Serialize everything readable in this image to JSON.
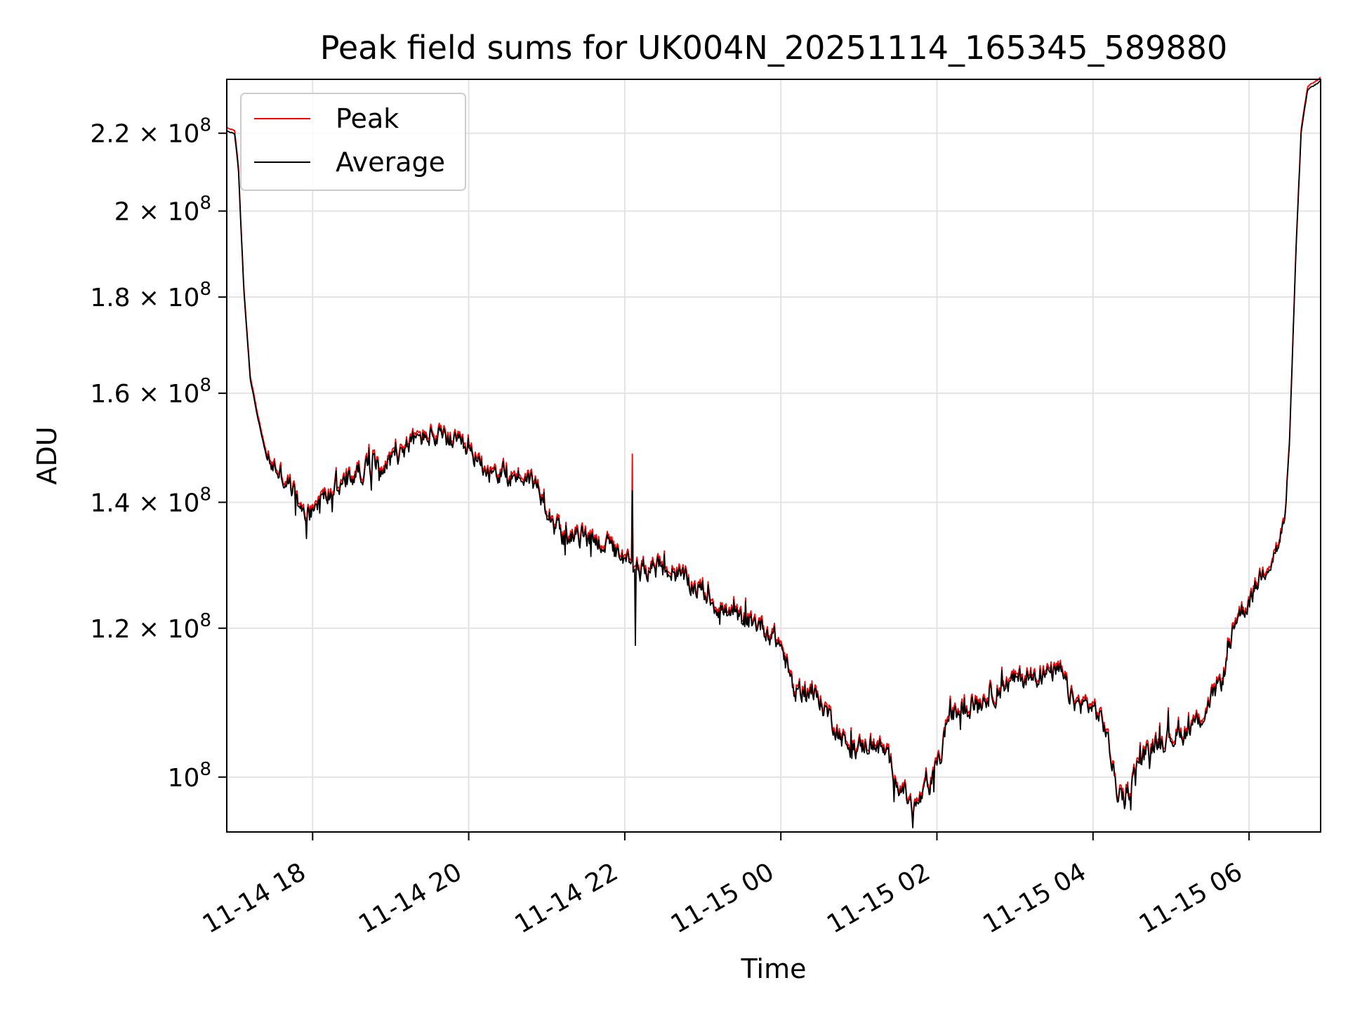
{
  "chart_data": {
    "type": "line",
    "title": "Peak field sums for UK004N_20251114_165345_589880",
    "xlabel": "Time",
    "ylabel": "ADU",
    "y_scale": "log",
    "grid": true,
    "legend_position": "top-left",
    "xlim": [
      "2025-11-14 16:54",
      "2025-11-15 06:55"
    ],
    "ylim": [
      93500000,
      235000000
    ],
    "x_ticks": [
      {
        "t": "2025-11-14 18:00",
        "label": "11-14 18"
      },
      {
        "t": "2025-11-14 20:00",
        "label": "11-14 20"
      },
      {
        "t": "2025-11-14 22:00",
        "label": "11-14 22"
      },
      {
        "t": "2025-11-15 00:00",
        "label": "11-15 00"
      },
      {
        "t": "2025-11-15 02:00",
        "label": "11-15 02"
      },
      {
        "t": "2025-11-15 04:00",
        "label": "11-15 04"
      },
      {
        "t": "2025-11-15 06:00",
        "label": "11-15 06"
      }
    ],
    "y_ticks": [
      {
        "v": 100000000,
        "mant": "",
        "exp": "8"
      },
      {
        "v": 120000000,
        "mant": "1.2",
        "exp": "8"
      },
      {
        "v": 140000000,
        "mant": "1.4",
        "exp": "8"
      },
      {
        "v": 160000000,
        "mant": "1.6",
        "exp": "8"
      },
      {
        "v": 180000000,
        "mant": "1.8",
        "exp": "8"
      },
      {
        "v": 200000000,
        "mant": "2",
        "exp": "8"
      },
      {
        "v": 220000000,
        "mant": "2.2",
        "exp": "8"
      }
    ],
    "series": [
      {
        "name": "Peak",
        "color": "#ff0000",
        "offset_factor": 1.004,
        "spikes": [
          {
            "t": "2025-11-14 22:06",
            "v": 148500000
          }
        ]
      },
      {
        "name": "Average",
        "color": "#000000",
        "offset_factor": 1.0,
        "spikes": [
          {
            "t": "2025-11-14 22:06",
            "v": 142000000
          },
          {
            "t": "2025-11-14 22:08",
            "v": 117500000
          }
        ]
      }
    ],
    "trend": [
      [
        "2025-11-14 16:54",
        220500000
      ],
      [
        "2025-11-14 17:00",
        220000000
      ],
      [
        "2025-11-14 17:03",
        210000000
      ],
      [
        "2025-11-14 17:07",
        182000000
      ],
      [
        "2025-11-14 17:12",
        163000000
      ],
      [
        "2025-11-14 17:18",
        155000000
      ],
      [
        "2025-11-14 17:25",
        147500000
      ],
      [
        "2025-11-14 17:35",
        145000000
      ],
      [
        "2025-11-14 17:45",
        142000000
      ],
      [
        "2025-11-14 17:52",
        137500000
      ],
      [
        "2025-11-14 18:00",
        139000000
      ],
      [
        "2025-11-14 18:10",
        141000000
      ],
      [
        "2025-11-14 18:25",
        143500000
      ],
      [
        "2025-11-14 18:40",
        146000000
      ],
      [
        "2025-11-14 19:00",
        147000000
      ],
      [
        "2025-11-14 19:15",
        150500000
      ],
      [
        "2025-11-14 19:30",
        152000000
      ],
      [
        "2025-11-14 19:45",
        151000000
      ],
      [
        "2025-11-14 20:00",
        148500000
      ],
      [
        "2025-11-14 20:15",
        146000000
      ],
      [
        "2025-11-14 20:30",
        144500000
      ],
      [
        "2025-11-14 20:45",
        144500000
      ],
      [
        "2025-11-14 20:55",
        142000000
      ],
      [
        "2025-11-14 21:03",
        138000000
      ],
      [
        "2025-11-14 21:15",
        133500000
      ],
      [
        "2025-11-14 21:30",
        134500000
      ],
      [
        "2025-11-14 21:45",
        133000000
      ],
      [
        "2025-11-14 22:00",
        130000000
      ],
      [
        "2025-11-14 22:10",
        129500000
      ],
      [
        "2025-11-14 22:30",
        129000000
      ],
      [
        "2025-11-14 22:45",
        127500000
      ],
      [
        "2025-11-14 23:00",
        125500000
      ],
      [
        "2025-11-14 23:15",
        122500000
      ],
      [
        "2025-11-14 23:30",
        121000000
      ],
      [
        "2025-11-14 23:45",
        120500000
      ],
      [
        "2025-11-15 00:00",
        117500000
      ],
      [
        "2025-11-15 00:10",
        111000000
      ],
      [
        "2025-11-15 00:20",
        111500000
      ],
      [
        "2025-11-15 00:35",
        108500000
      ],
      [
        "2025-11-15 00:50",
        104000000
      ],
      [
        "2025-11-15 01:00",
        103500000
      ],
      [
        "2025-11-15 01:10",
        104500000
      ],
      [
        "2025-11-15 01:20",
        103000000
      ],
      [
        "2025-11-15 01:30",
        99500000
      ],
      [
        "2025-11-15 01:42",
        96000000
      ],
      [
        "2025-11-15 01:55",
        99000000
      ],
      [
        "2025-11-15 02:03",
        102500000
      ],
      [
        "2025-11-15 02:08",
        107500000
      ],
      [
        "2025-11-15 02:20",
        108500000
      ],
      [
        "2025-11-15 02:40",
        110500000
      ],
      [
        "2025-11-15 03:00",
        112500000
      ],
      [
        "2025-11-15 03:20",
        113500000
      ],
      [
        "2025-11-15 03:35",
        113500000
      ],
      [
        "2025-11-15 03:45",
        109500000
      ],
      [
        "2025-11-15 04:00",
        109000000
      ],
      [
        "2025-11-15 04:10",
        106000000
      ],
      [
        "2025-11-15 04:18",
        98500000
      ],
      [
        "2025-11-15 04:25",
        97000000
      ],
      [
        "2025-11-15 04:35",
        102000000
      ],
      [
        "2025-11-15 04:50",
        104500000
      ],
      [
        "2025-11-15 05:10",
        105500000
      ],
      [
        "2025-11-15 05:25",
        108000000
      ],
      [
        "2025-11-15 05:40",
        113000000
      ],
      [
        "2025-11-15 05:50",
        121500000
      ],
      [
        "2025-11-15 06:00",
        124000000
      ],
      [
        "2025-11-15 06:10",
        128500000
      ],
      [
        "2025-11-15 06:22",
        132500000
      ],
      [
        "2025-11-15 06:27",
        136000000
      ],
      [
        "2025-11-15 06:31",
        150000000
      ],
      [
        "2025-11-15 06:36",
        190000000
      ],
      [
        "2025-11-15 06:40",
        220000000
      ],
      [
        "2025-11-15 06:45",
        232000000
      ],
      [
        "2025-11-15 06:55",
        234500000
      ]
    ],
    "noise": {
      "quiet_until": "2025-11-14 17:25",
      "quiet_from": "2025-11-15 06:29",
      "relative_amplitude": 0.013
    }
  }
}
